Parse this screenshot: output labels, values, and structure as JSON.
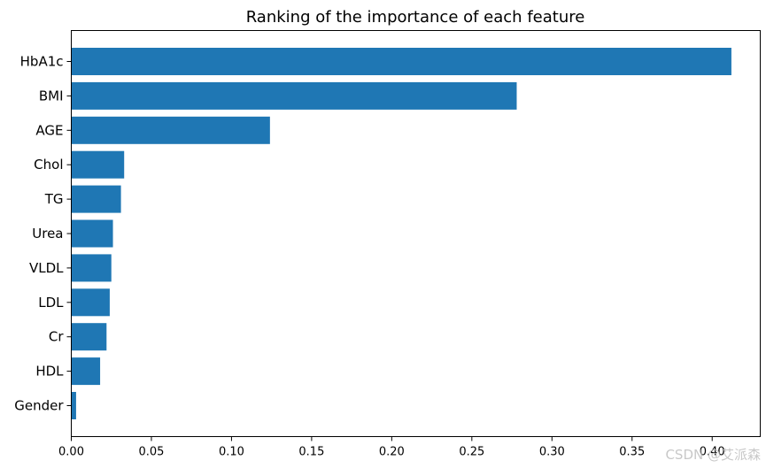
{
  "chart_data": {
    "type": "bar",
    "orientation": "horizontal",
    "title": "Ranking of the importance of each feature",
    "xlabel": "",
    "ylabel": "",
    "xlim": [
      0,
      0.43
    ],
    "x_ticks": [
      0.0,
      0.05,
      0.1,
      0.15,
      0.2,
      0.25,
      0.3,
      0.35,
      0.4
    ],
    "x_tick_labels": [
      "0.00",
      "0.05",
      "0.10",
      "0.15",
      "0.20",
      "0.25",
      "0.30",
      "0.35",
      "0.40"
    ],
    "categories": [
      "HbA1c",
      "BMI",
      "AGE",
      "Chol",
      "TG",
      "Urea",
      "VLDL",
      "LDL",
      "Cr",
      "HDL",
      "Gender"
    ],
    "values": [
      0.412,
      0.278,
      0.124,
      0.033,
      0.031,
      0.026,
      0.025,
      0.024,
      0.022,
      0.018,
      0.003
    ],
    "bar_color": "#1f77b4",
    "grid": false
  },
  "watermark": "CSDN @艾派森"
}
